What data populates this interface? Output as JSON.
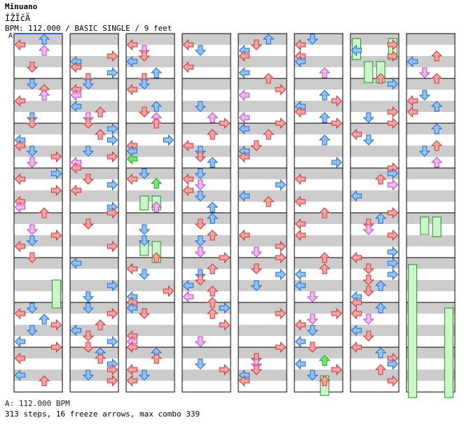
{
  "song": {
    "title": "Minuano",
    "subtitle": "ÍŽÏčÄ",
    "info": "BPM: 112.000 / BASIC SINGLE / 9 feet"
  },
  "bpm_marker": "A",
  "footer": {
    "bpm_line": "A: 112.000 BPM",
    "stats_line": "313 steps, 16 freeze arrows, max combo 339"
  },
  "chart_data": {
    "type": "step-chart",
    "mode": "BASIC SINGLE",
    "bpm": 112.0,
    "difficulty_feet": 9,
    "steps": 313,
    "freeze_arrows": 16,
    "max_combo": 339,
    "measures_per_column": 8,
    "columns": 8,
    "colors": {
      "red_arrow": "#f4a4a4",
      "blue_arrow": "#8ec4f8",
      "pink_arrow": "#f4b6f4",
      "green_arrow": "#66f066",
      "freeze_body": "#c8f8c8",
      "stripe_dark": "#cccccc",
      "stripe_light": "#ffffff"
    }
  }
}
